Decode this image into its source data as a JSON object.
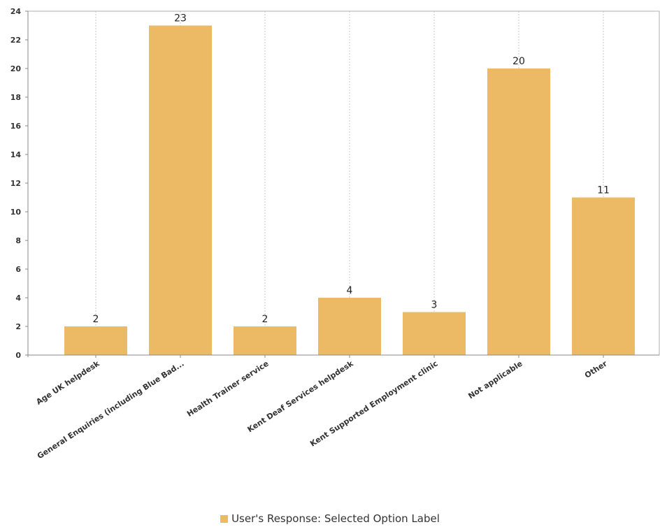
{
  "chart_data": {
    "type": "bar",
    "categories": [
      "Age UK helpdesk",
      "General Enquiries (including Blue Bad...",
      "Health Trainer service",
      "Kent Deaf Services helpdesk",
      "Kent Supported Employment clinic",
      "Not applicable",
      "Other"
    ],
    "series": [
      {
        "name": "User's Response: Selected Option Label",
        "values": [
          2,
          23,
          2,
          4,
          3,
          20,
          11
        ],
        "color": "#ecba64"
      }
    ],
    "data_labels": [
      "2",
      "23",
      "2",
      "4",
      "3",
      "20",
      "11"
    ],
    "yticks": [
      0,
      2,
      4,
      6,
      8,
      10,
      12,
      14,
      16,
      18,
      20,
      22,
      24
    ],
    "ylim": [
      0,
      24
    ],
    "title": "",
    "xlabel": "",
    "ylabel": "",
    "grid": "vertical dotted",
    "legend_position": "bottom"
  }
}
